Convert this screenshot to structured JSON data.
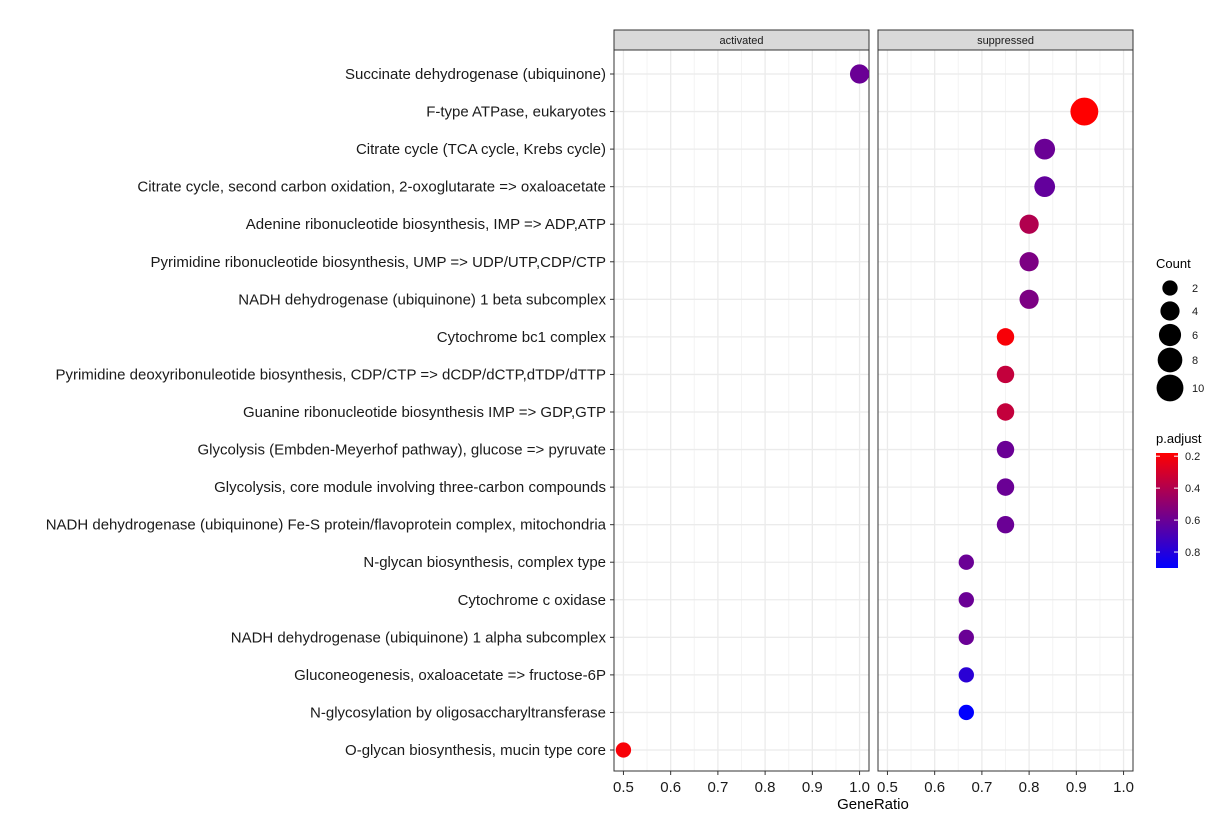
{
  "chart_data": {
    "type": "scatter",
    "xlabel": "GeneRatio",
    "xlim": [
      0.48,
      1.02
    ],
    "x_ticks": [
      "0.5",
      "0.6",
      "0.7",
      "0.8",
      "0.9",
      "1.0"
    ],
    "panels": [
      "activated",
      "suppressed"
    ],
    "categories": [
      "Succinate dehydrogenase (ubiquinone)",
      "F-type ATPase, eukaryotes",
      "Citrate cycle (TCA cycle, Krebs cycle)",
      "Citrate cycle, second carbon oxidation, 2-oxoglutarate => oxaloacetate",
      "Adenine ribonucleotide biosynthesis, IMP => ADP,ATP",
      "Pyrimidine ribonucleotide biosynthesis, UMP => UDP/UTP,CDP/CTP",
      "NADH dehydrogenase (ubiquinone) 1 beta subcomplex",
      "Cytochrome bc1 complex",
      "Pyrimidine deoxyribonuleotide biosynthesis, CDP/CTP => dCDP/dCTP,dTDP/dTTP",
      "Guanine ribonucleotide biosynthesis IMP => GDP,GTP",
      "Glycolysis (Embden-Meyerhof pathway), glucose => pyruvate",
      "Glycolysis, core module involving three-carbon compounds",
      "NADH dehydrogenase (ubiquinone) Fe-S protein/flavoprotein complex, mitochondria",
      "N-glycan biosynthesis, complex type",
      "Cytochrome c oxidase",
      "NADH dehydrogenase (ubiquinone) 1 alpha subcomplex",
      "Gluconeogenesis, oxaloacetate => fructose-6P",
      "N-glycosylation by oligosaccharyltransferase",
      "O-glycan biosynthesis, mucin type core"
    ],
    "points": [
      {
        "category": 0,
        "panel": "activated",
        "x": 1.0,
        "count": 4,
        "p_adjust": 0.6
      },
      {
        "category": 1,
        "panel": "suppressed",
        "x": 0.917,
        "count": 11,
        "p_adjust": 0.18
      },
      {
        "category": 2,
        "panel": "suppressed",
        "x": 0.833,
        "count": 5,
        "p_adjust": 0.6
      },
      {
        "category": 3,
        "panel": "suppressed",
        "x": 0.833,
        "count": 5,
        "p_adjust": 0.62
      },
      {
        "category": 4,
        "panel": "suppressed",
        "x": 0.8,
        "count": 4,
        "p_adjust": 0.4
      },
      {
        "category": 5,
        "panel": "suppressed",
        "x": 0.8,
        "count": 4,
        "p_adjust": 0.55
      },
      {
        "category": 6,
        "panel": "suppressed",
        "x": 0.8,
        "count": 4,
        "p_adjust": 0.55
      },
      {
        "category": 7,
        "panel": "suppressed",
        "x": 0.75,
        "count": 3,
        "p_adjust": 0.2
      },
      {
        "category": 8,
        "panel": "suppressed",
        "x": 0.75,
        "count": 3,
        "p_adjust": 0.35
      },
      {
        "category": 9,
        "panel": "suppressed",
        "x": 0.75,
        "count": 3,
        "p_adjust": 0.35
      },
      {
        "category": 10,
        "panel": "suppressed",
        "x": 0.75,
        "count": 3,
        "p_adjust": 0.6
      },
      {
        "category": 11,
        "panel": "suppressed",
        "x": 0.75,
        "count": 3,
        "p_adjust": 0.6
      },
      {
        "category": 12,
        "panel": "suppressed",
        "x": 0.75,
        "count": 3,
        "p_adjust": 0.6
      },
      {
        "category": 13,
        "panel": "suppressed",
        "x": 0.667,
        "count": 2,
        "p_adjust": 0.6
      },
      {
        "category": 14,
        "panel": "suppressed",
        "x": 0.667,
        "count": 2,
        "p_adjust": 0.6
      },
      {
        "category": 15,
        "panel": "suppressed",
        "x": 0.667,
        "count": 2,
        "p_adjust": 0.6
      },
      {
        "category": 16,
        "panel": "suppressed",
        "x": 0.667,
        "count": 2,
        "p_adjust": 0.78
      },
      {
        "category": 17,
        "panel": "suppressed",
        "x": 0.667,
        "count": 2,
        "p_adjust": 0.9
      },
      {
        "category": 18,
        "panel": "activated",
        "x": 0.5,
        "count": 2,
        "p_adjust": 0.2
      }
    ],
    "size_legend": {
      "title": "Count",
      "values": [
        2,
        4,
        6,
        8,
        10
      ]
    },
    "color_legend": {
      "title": "p.adjust",
      "ticks": [
        "0.2",
        "0.4",
        "0.6",
        "0.8"
      ],
      "tick_values": [
        0.2,
        0.4,
        0.6,
        0.8
      ],
      "range": [
        0.18,
        0.9
      ],
      "low_color": "#ff0000",
      "high_color": "#0000ff"
    },
    "legend_position": "right",
    "grid": true,
    "colors": {
      "strip_fill": "#d9d9d9",
      "strip_border": "#333333",
      "panel_border": "#333333",
      "grid_major": "#ebebeb",
      "grid_minor": "#f4f4f4",
      "point_size_legend": "#000000"
    }
  }
}
